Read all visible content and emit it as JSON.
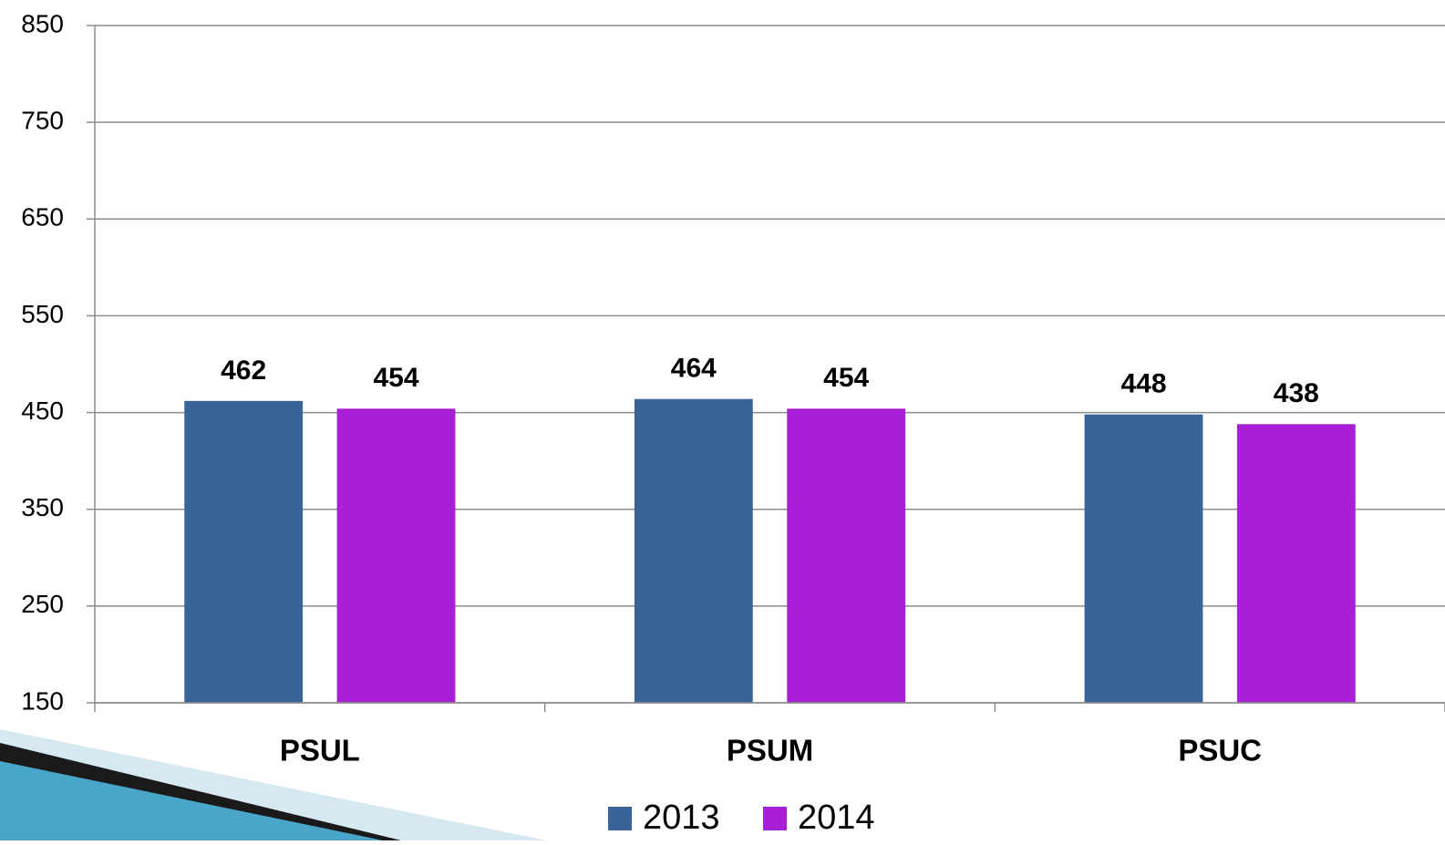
{
  "chart_data": {
    "type": "bar",
    "categories": [
      "PSUL",
      "PSUM",
      "PSUC"
    ],
    "series": [
      {
        "name": "2013",
        "color": "#3a6399",
        "values": [
          462,
          464,
          448
        ]
      },
      {
        "name": "2014",
        "color": "#a81fd6",
        "values": [
          454,
          454,
          438
        ]
      }
    ],
    "ylim": [
      150,
      850
    ],
    "yticks": [
      150,
      250,
      350,
      450,
      550,
      650,
      750,
      850
    ],
    "grid": true,
    "legend": "bottom"
  }
}
